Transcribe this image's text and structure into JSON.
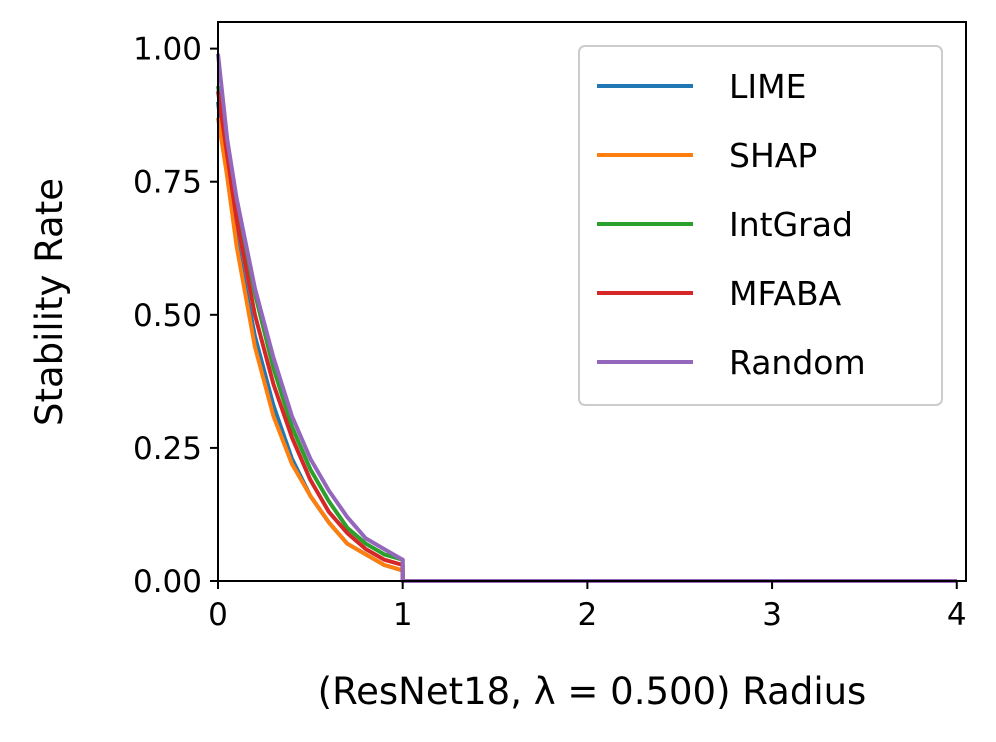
{
  "chart_data": {
    "type": "line",
    "xlabel": "(ResNet18, λ = 0.500) Radius",
    "ylabel": "Stability Rate",
    "xlim": [
      0,
      4.05
    ],
    "ylim": [
      0,
      1.05
    ],
    "xticks": [
      0,
      1,
      2,
      3,
      4
    ],
    "xtick_labels": [
      "0",
      "1",
      "2",
      "3",
      "4"
    ],
    "yticks": [
      0,
      0.25,
      0.5,
      0.75,
      1.0
    ],
    "ytick_labels": [
      "0.00",
      "0.25",
      "0.50",
      "0.75",
      "1.00"
    ],
    "grid": false,
    "legend_position": "top-right",
    "series": [
      {
        "name": "LIME",
        "color": "#1f77b4",
        "x": [
          0,
          0.05,
          0.1,
          0.2,
          0.3,
          0.4,
          0.5,
          0.6,
          0.7,
          0.8,
          0.9,
          1.0,
          1.0,
          4.0
        ],
        "y": [
          0.9,
          0.76,
          0.64,
          0.46,
          0.33,
          0.23,
          0.16,
          0.11,
          0.07,
          0.05,
          0.03,
          0.02,
          0.0,
          0.0
        ]
      },
      {
        "name": "SHAP",
        "color": "#ff7f0e",
        "x": [
          0,
          0.05,
          0.1,
          0.2,
          0.3,
          0.4,
          0.5,
          0.6,
          0.7,
          0.8,
          0.9,
          1.0,
          1.0,
          4.0
        ],
        "y": [
          0.87,
          0.76,
          0.63,
          0.44,
          0.31,
          0.22,
          0.16,
          0.11,
          0.07,
          0.05,
          0.03,
          0.02,
          0.0,
          0.0
        ]
      },
      {
        "name": "IntGrad",
        "color": "#2ca02c",
        "x": [
          0,
          0.05,
          0.1,
          0.2,
          0.3,
          0.4,
          0.5,
          0.6,
          0.7,
          0.8,
          0.9,
          1.0,
          1.0,
          4.0
        ],
        "y": [
          0.93,
          0.82,
          0.71,
          0.54,
          0.4,
          0.29,
          0.21,
          0.15,
          0.1,
          0.07,
          0.05,
          0.04,
          0.0,
          0.0
        ]
      },
      {
        "name": "MFABA",
        "color": "#d62728",
        "x": [
          0,
          0.05,
          0.1,
          0.2,
          0.3,
          0.4,
          0.5,
          0.6,
          0.7,
          0.8,
          0.9,
          1.0,
          1.0,
          4.0
        ],
        "y": [
          0.92,
          0.8,
          0.68,
          0.5,
          0.37,
          0.27,
          0.19,
          0.13,
          0.09,
          0.06,
          0.04,
          0.03,
          0.0,
          0.0
        ]
      },
      {
        "name": "Random",
        "color": "#9467bd",
        "x": [
          0,
          0.05,
          0.1,
          0.2,
          0.3,
          0.4,
          0.5,
          0.6,
          0.7,
          0.8,
          0.9,
          1.0,
          1.0,
          4.0
        ],
        "y": [
          0.99,
          0.83,
          0.72,
          0.55,
          0.42,
          0.31,
          0.23,
          0.17,
          0.12,
          0.08,
          0.06,
          0.04,
          0.0,
          0.0
        ]
      }
    ]
  }
}
